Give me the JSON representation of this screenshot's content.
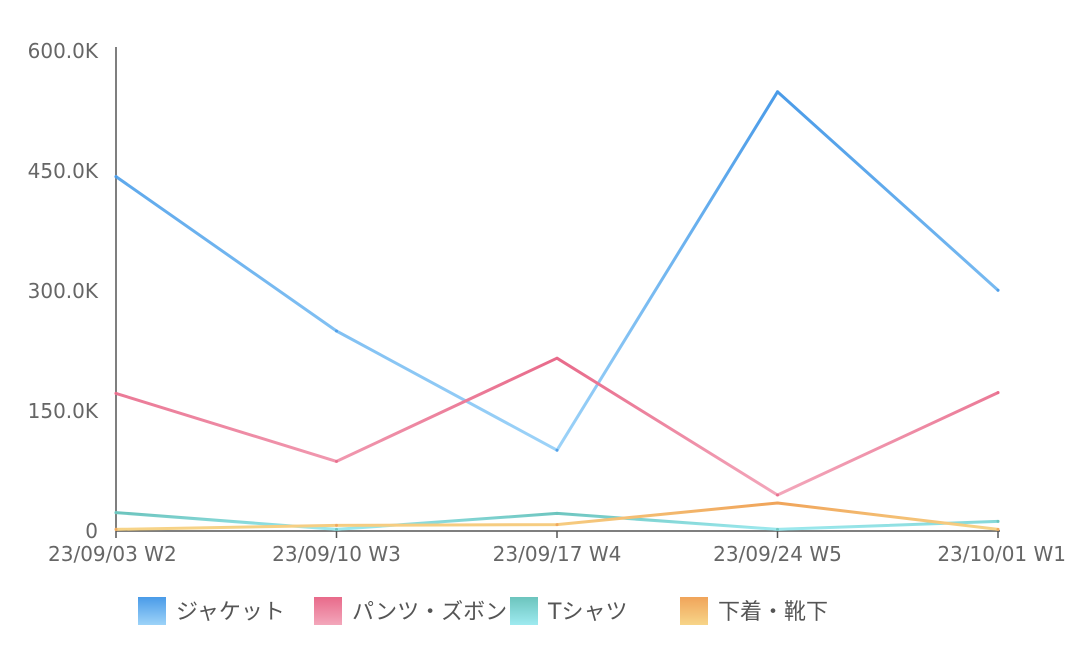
{
  "chart_data": {
    "type": "line",
    "categories": [
      "23/09/03 W2",
      "23/09/10 W3",
      "23/09/17 W4",
      "23/09/24 W5",
      "23/10/01 W1"
    ],
    "ylim": [
      0,
      600000
    ],
    "yticks": [
      {
        "value": 0,
        "label": "0"
      },
      {
        "value": 150000,
        "label": "150.0K"
      },
      {
        "value": 300000,
        "label": "300.0K"
      },
      {
        "value": 450000,
        "label": "450.0K"
      },
      {
        "value": 600000,
        "label": "600.0K"
      }
    ],
    "grid": false,
    "legend_position": "bottom",
    "series": [
      {
        "name": "ジャケット",
        "color_start": "#4a9be8",
        "color_end": "#9dd3f8",
        "values": [
          443000,
          250000,
          101000,
          549000,
          301000
        ]
      },
      {
        "name": "パンツ・ズボン",
        "color_start": "#e86a8a",
        "color_end": "#f3a7bb",
        "values": [
          172000,
          87000,
          216000,
          45000,
          173000
        ]
      },
      {
        "name": "Tシャツ",
        "color_start": "#6cc4bd",
        "color_end": "#9eeaf0",
        "values": [
          23000,
          2000,
          22000,
          2000,
          12000
        ]
      },
      {
        "name": "下着・靴下",
        "color_start": "#f0a45a",
        "color_end": "#f7d589",
        "values": [
          2000,
          7000,
          8000,
          35000,
          2000
        ]
      }
    ]
  }
}
